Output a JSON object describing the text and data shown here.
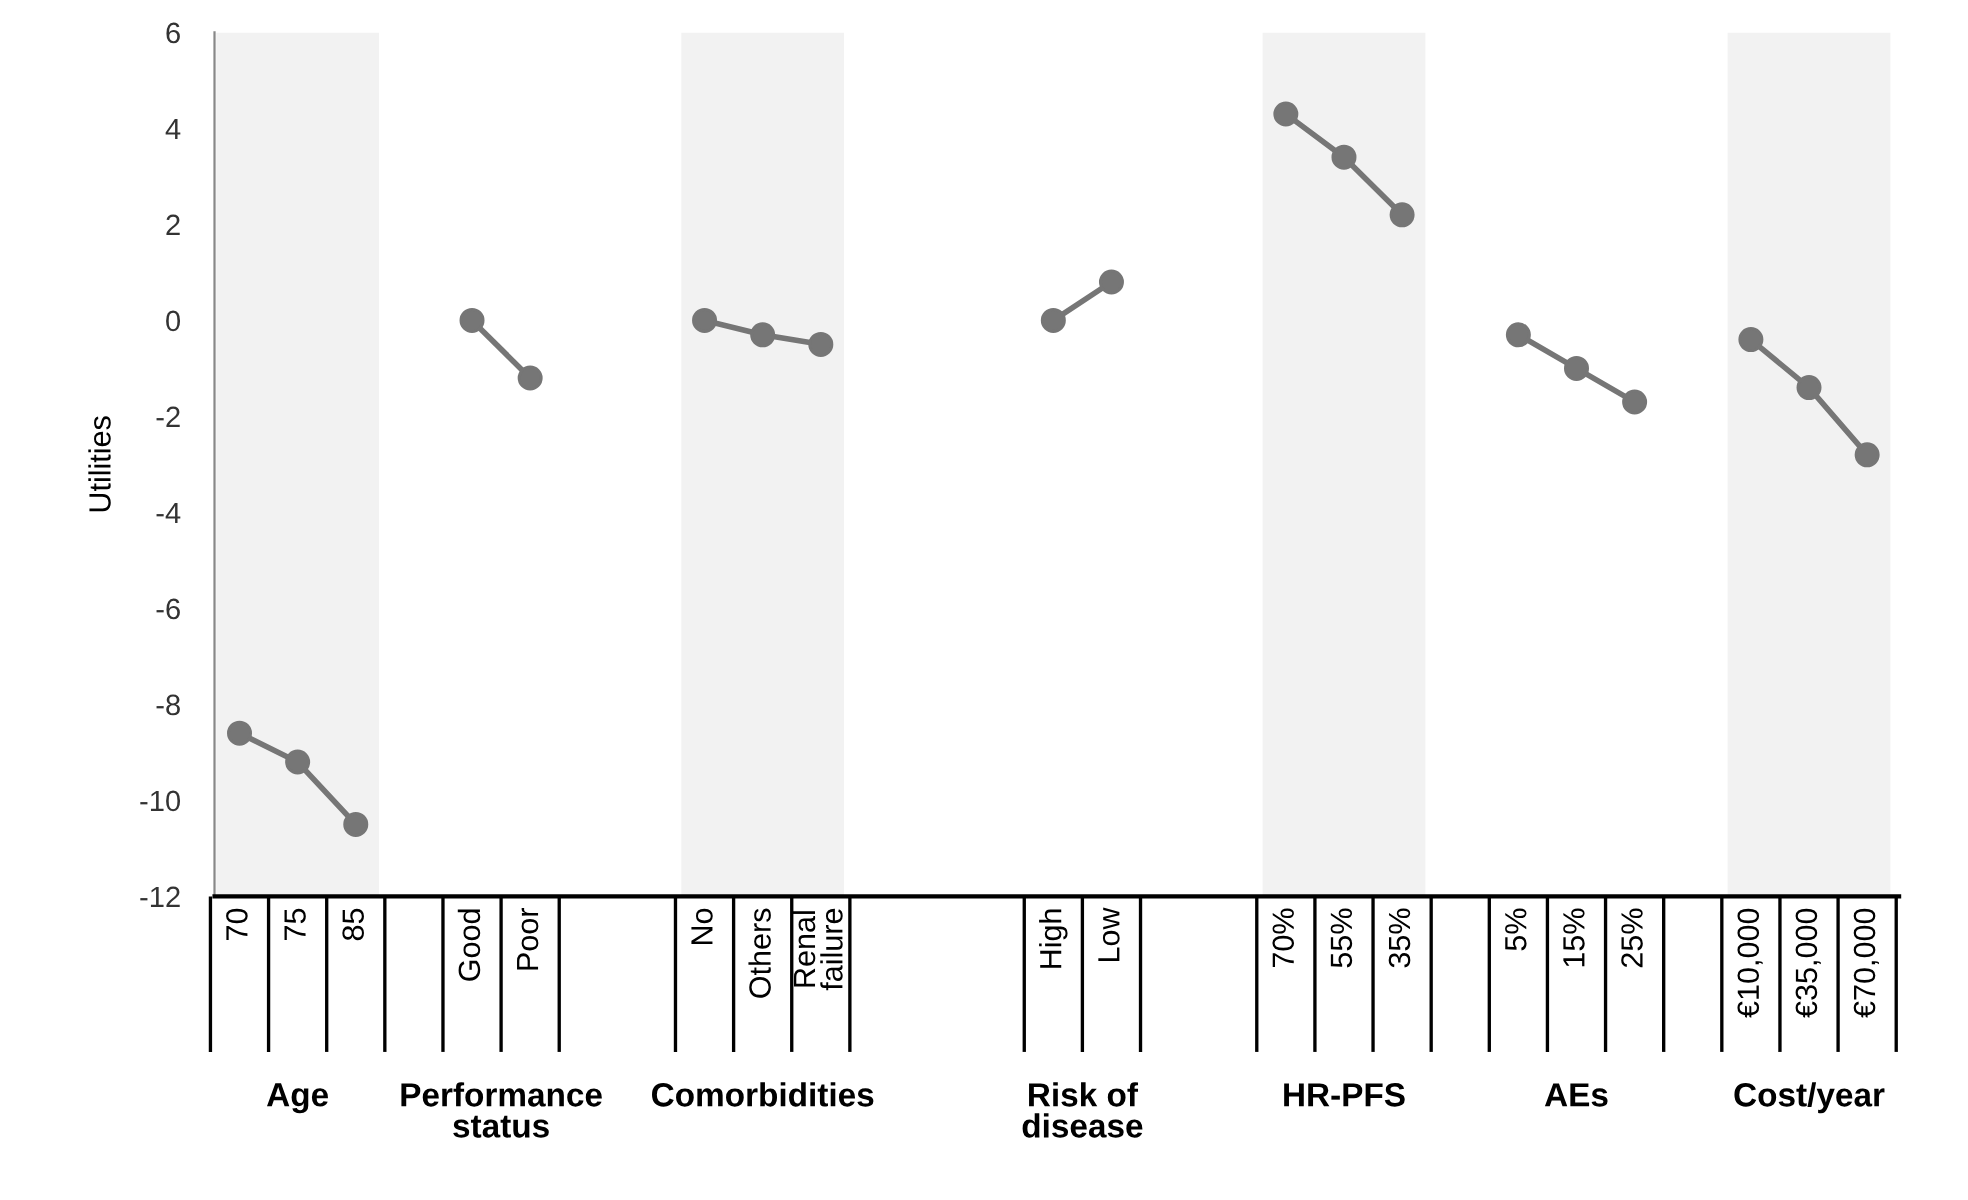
{
  "chart_data": {
    "type": "line",
    "ylabel": "Utilities",
    "categories": [
      "70",
      "75",
      "85",
      null,
      "Good",
      "Poor",
      null,
      null,
      "No",
      "Others",
      "Renal\nfailure",
      null,
      null,
      null,
      "High",
      "Low",
      null,
      null,
      "70%",
      "55%",
      "35%",
      null,
      "5%",
      "15%",
      "25%",
      null,
      "€10,000",
      "€35,000",
      "€70,000"
    ],
    "series": [
      {
        "color": "#767676",
        "values": [
          -8.6,
          -9.2,
          -10.5,
          null,
          null,
          null,
          null,
          null,
          null,
          null,
          null,
          null,
          null,
          null,
          null,
          null,
          null,
          null,
          null,
          null,
          null,
          null,
          null,
          null,
          null,
          null,
          null,
          null,
          null
        ]
      },
      {
        "color": "#767676",
        "values": [
          null,
          null,
          null,
          null,
          0,
          -1.2,
          null,
          null,
          null,
          null,
          null,
          null,
          null,
          null,
          null,
          null,
          null,
          null,
          null,
          null,
          null,
          null,
          null,
          null,
          null,
          null,
          null,
          null,
          null
        ]
      },
      {
        "color": "#767676",
        "values": [
          null,
          null,
          null,
          null,
          null,
          null,
          null,
          null,
          0,
          -0.3,
          -0.5,
          null,
          null,
          null,
          null,
          null,
          null,
          null,
          null,
          null,
          null,
          null,
          null,
          null,
          null,
          null,
          null,
          null,
          null
        ]
      },
      {
        "color": "#767676",
        "values": [
          null,
          null,
          null,
          null,
          null,
          null,
          null,
          null,
          null,
          null,
          null,
          null,
          null,
          null,
          0,
          0.8,
          null,
          null,
          null,
          null,
          null,
          null,
          null,
          null,
          null,
          null,
          null,
          null,
          null
        ]
      },
      {
        "color": "#767676",
        "values": [
          null,
          null,
          null,
          null,
          null,
          null,
          null,
          null,
          null,
          null,
          null,
          null,
          null,
          null,
          null,
          null,
          null,
          null,
          4.3,
          3.4,
          2.2,
          null,
          null,
          null,
          null,
          null,
          null,
          null,
          null
        ]
      },
      {
        "color": "#767676",
        "values": [
          null,
          null,
          null,
          null,
          null,
          null,
          null,
          null,
          null,
          null,
          null,
          null,
          null,
          null,
          null,
          null,
          null,
          null,
          null,
          null,
          null,
          null,
          -0.3,
          -1.0,
          -1.7,
          null,
          null,
          null,
          null
        ]
      },
      {
        "color": "#767676",
        "values": [
          null,
          null,
          null,
          null,
          null,
          null,
          null,
          null,
          null,
          null,
          null,
          null,
          null,
          null,
          null,
          null,
          null,
          null,
          null,
          null,
          null,
          null,
          null,
          null,
          null,
          null,
          -0.4,
          -1.4,
          -2.8
        ]
      }
    ],
    "annotations": [
      "Age",
      "Performance\nstatus",
      "Comorbidities",
      "Risk of\ndisease",
      "HR-PFS",
      "AEs",
      "Cost/year"
    ],
    "bands": [
      {
        "axis": "x",
        "from": "70",
        "to": "85",
        "color": "#f2f2f2"
      },
      {
        "axis": "x",
        "from": "No",
        "to": "Renal\nfailure",
        "color": "#f2f2f2"
      },
      {
        "axis": "x",
        "from": "70%",
        "to": "35%",
        "color": "#f2f2f2"
      },
      {
        "axis": "x",
        "from": "€10,000",
        "to": "€70,000",
        "color": "#f2f2f2"
      }
    ],
    "ylim": [
      -12,
      6
    ],
    "yticks": [
      -12,
      -10,
      -8,
      -6,
      -4,
      -2,
      0,
      2,
      4,
      6
    ],
    "marker": "circle",
    "line_style": "solid",
    "grid": false,
    "legend": false
  }
}
